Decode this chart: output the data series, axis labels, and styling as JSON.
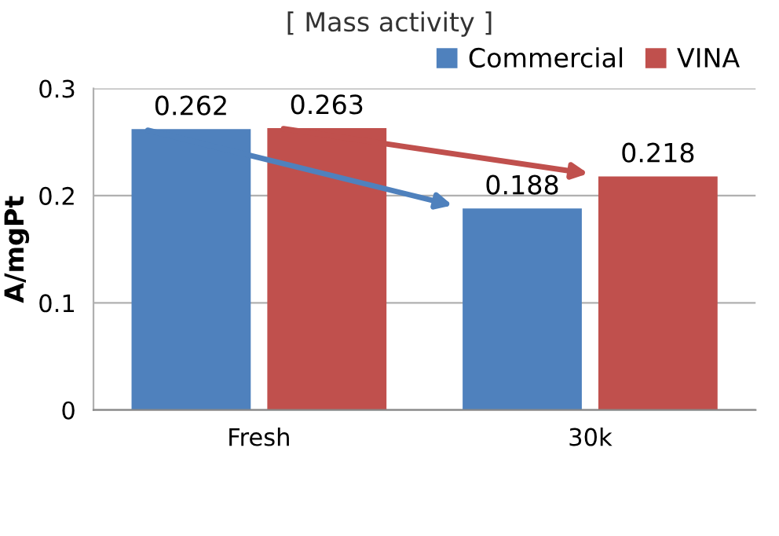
{
  "chart_data": {
    "type": "bar",
    "title": "[ Mass activity ]",
    "ylabel": "A/mgPt",
    "categories": [
      "Fresh",
      "30k"
    ],
    "series": [
      {
        "name": "Commercial",
        "color": "#4f81bd",
        "values": [
          0.262,
          0.188
        ]
      },
      {
        "name": "VINA",
        "color": "#c0504d",
        "values": [
          0.263,
          0.218
        ]
      }
    ],
    "ylim": [
      0,
      0.3
    ],
    "yticks": [
      0,
      0.1,
      0.2,
      0.3
    ],
    "grid": "y",
    "legend": "top right",
    "data_labels": true
  }
}
